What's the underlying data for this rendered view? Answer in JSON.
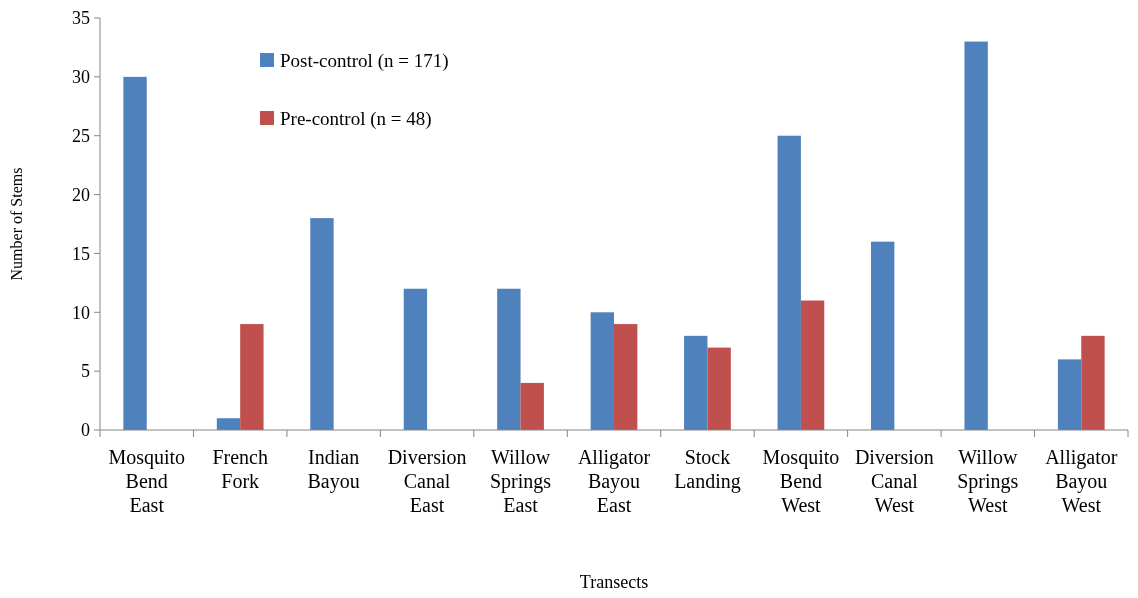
{
  "chart_data": {
    "type": "bar",
    "xlabel": "Transects",
    "ylabel": "Number of Stems",
    "categories": [
      "Mosquito Bend East",
      "French Fork",
      "Indian Bayou",
      "Diversion Canal East",
      "Willow Springs East",
      "Alligator Bayou East",
      "Stock Landing",
      "Mosquito Bend West",
      "Diversion Canal West",
      "Willow Springs West",
      "Alligator Bayou West"
    ],
    "series": [
      {
        "name": "Post-control (n = 171)",
        "color": "#4f81bd",
        "values": [
          30,
          1,
          18,
          12,
          12,
          10,
          8,
          25,
          16,
          33,
          6
        ]
      },
      {
        "name": "Pre-control (n = 48)",
        "color": "#c0504d",
        "values": [
          0,
          9,
          0,
          0,
          4,
          9,
          7,
          11,
          0,
          0,
          8
        ]
      }
    ],
    "ylim": [
      0,
      35
    ],
    "yticks": [
      0,
      5,
      10,
      15,
      20,
      25,
      30,
      35
    ],
    "grid": false,
    "legend": "top left"
  }
}
